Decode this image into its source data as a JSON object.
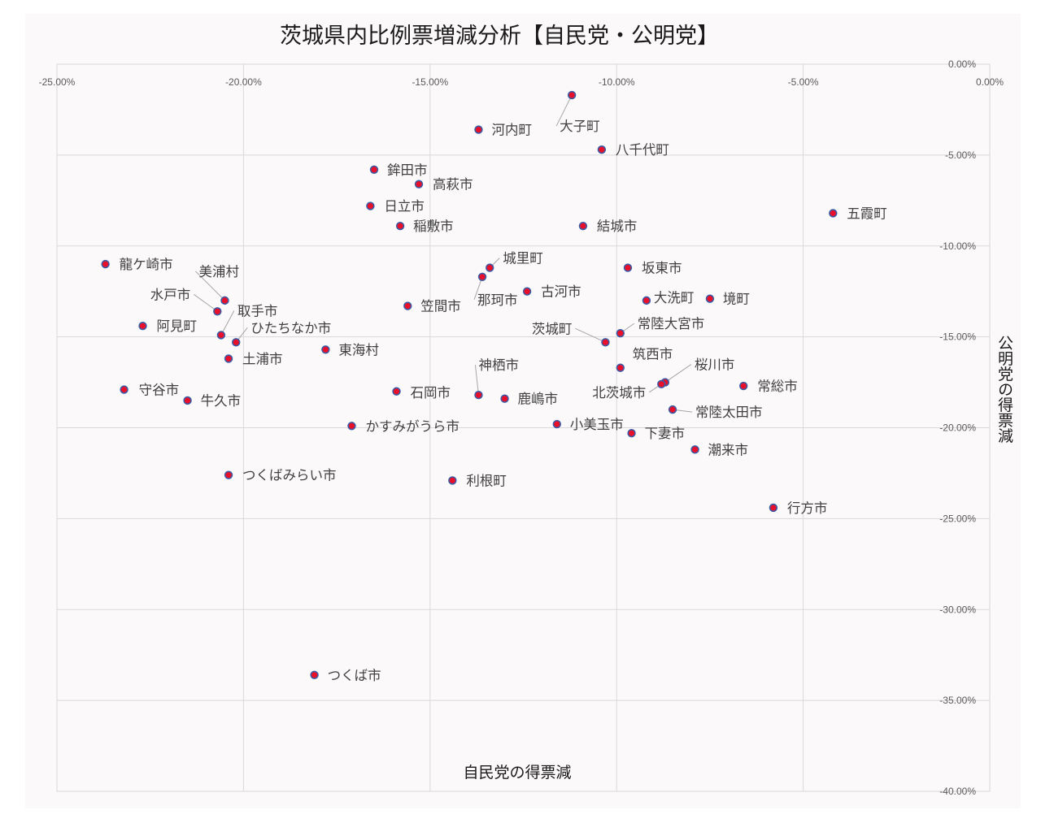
{
  "chart_data": {
    "type": "scatter",
    "title": "茨城県内比例票増減分析【自民党・公明党】",
    "xlabel": "自民党の得票減",
    "ylabel": "公明党の得票減",
    "xlim": [
      -0.25,
      0
    ],
    "ylim": [
      -0.4,
      0
    ],
    "x_ticks": [
      -0.25,
      -0.2,
      -0.15,
      -0.1,
      -0.05,
      0
    ],
    "x_tick_labels": [
      "-25.00%",
      "-20.00%",
      "-15.00%",
      "-10.00%",
      "-5.00%",
      "0.00%"
    ],
    "y_ticks": [
      0,
      -0.05,
      -0.1,
      -0.15,
      -0.2,
      -0.25,
      -0.3,
      -0.35,
      -0.4
    ],
    "y_tick_labels": [
      "0.00%",
      "-5.00%",
      "-10.00%",
      "-15.00%",
      "-20.00%",
      "-25.00%",
      "-30.00%",
      "-35.00%",
      "-40.00%"
    ],
    "x_axis_position": "top",
    "y_axis_position": "right",
    "grid": true,
    "legend": "none",
    "marker_fill": "#e8102a",
    "marker_edge": "#3b5ba5",
    "points": [
      {
        "name": "大子町",
        "x": -0.112,
        "y": -0.017
      },
      {
        "name": "河内町",
        "x": -0.137,
        "y": -0.036
      },
      {
        "name": "八千代町",
        "x": -0.104,
        "y": -0.047
      },
      {
        "name": "鉾田市",
        "x": -0.165,
        "y": -0.058
      },
      {
        "name": "高萩市",
        "x": -0.153,
        "y": -0.066
      },
      {
        "name": "日立市",
        "x": -0.166,
        "y": -0.078
      },
      {
        "name": "稲敷市",
        "x": -0.158,
        "y": -0.089
      },
      {
        "name": "結城市",
        "x": -0.109,
        "y": -0.089
      },
      {
        "name": "五霞町",
        "x": -0.042,
        "y": -0.082
      },
      {
        "name": "龍ケ崎市",
        "x": -0.237,
        "y": -0.11
      },
      {
        "name": "城里町",
        "x": -0.134,
        "y": -0.112
      },
      {
        "name": "那珂市",
        "x": -0.136,
        "y": -0.117
      },
      {
        "name": "坂東市",
        "x": -0.097,
        "y": -0.112
      },
      {
        "name": "美浦村",
        "x": -0.205,
        "y": -0.13
      },
      {
        "name": "水戸市",
        "x": -0.207,
        "y": -0.136
      },
      {
        "name": "古河市",
        "x": -0.124,
        "y": -0.125
      },
      {
        "name": "大洗町",
        "x": -0.092,
        "y": -0.13
      },
      {
        "name": "境町",
        "x": -0.075,
        "y": -0.129
      },
      {
        "name": "笠間市",
        "x": -0.156,
        "y": -0.133
      },
      {
        "name": "取手市",
        "x": -0.206,
        "y": -0.149
      },
      {
        "name": "阿見町",
        "x": -0.227,
        "y": -0.144
      },
      {
        "name": "ひたちなか市",
        "x": -0.202,
        "y": -0.153
      },
      {
        "name": "常陸大宮市",
        "x": -0.099,
        "y": -0.148
      },
      {
        "name": "茨城町",
        "x": -0.103,
        "y": -0.153
      },
      {
        "name": "東海村",
        "x": -0.178,
        "y": -0.157
      },
      {
        "name": "土浦市",
        "x": -0.204,
        "y": -0.162
      },
      {
        "name": "筑西市",
        "x": -0.099,
        "y": -0.167
      },
      {
        "name": "桜川市",
        "x": -0.087,
        "y": -0.175
      },
      {
        "name": "北茨城市",
        "x": -0.088,
        "y": -0.176
      },
      {
        "name": "常総市",
        "x": -0.066,
        "y": -0.177
      },
      {
        "name": "守谷市",
        "x": -0.232,
        "y": -0.179
      },
      {
        "name": "石岡市",
        "x": -0.159,
        "y": -0.18
      },
      {
        "name": "神栖市",
        "x": -0.137,
        "y": -0.182
      },
      {
        "name": "鹿嶋市",
        "x": -0.13,
        "y": -0.184
      },
      {
        "name": "牛久市",
        "x": -0.215,
        "y": -0.185
      },
      {
        "name": "常陸太田市",
        "x": -0.085,
        "y": -0.19
      },
      {
        "name": "かすみがうら市",
        "x": -0.171,
        "y": -0.199
      },
      {
        "name": "小美玉市",
        "x": -0.116,
        "y": -0.198
      },
      {
        "name": "下妻市",
        "x": -0.096,
        "y": -0.203
      },
      {
        "name": "潮来市",
        "x": -0.079,
        "y": -0.212
      },
      {
        "name": "つくばみらい市",
        "x": -0.204,
        "y": -0.226
      },
      {
        "name": "利根町",
        "x": -0.144,
        "y": -0.229
      },
      {
        "name": "行方市",
        "x": -0.058,
        "y": -0.244
      },
      {
        "name": "つくば市",
        "x": -0.181,
        "y": -0.336
      }
    ]
  }
}
